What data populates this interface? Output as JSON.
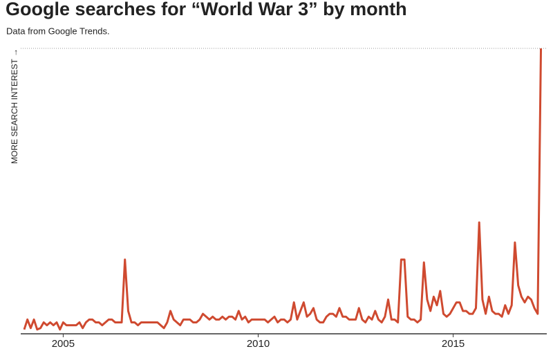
{
  "chart_data": {
    "type": "line",
    "title": "Google searches for “World War 3” by month",
    "subtitle": "Data from Google Trends.",
    "y_label": "MORE SEARCH INTEREST →",
    "x": [
      2004,
      2004.083,
      2004.167,
      2004.25,
      2004.333,
      2004.417,
      2004.5,
      2004.583,
      2004.667,
      2004.75,
      2004.833,
      2004.917,
      2005,
      2005.083,
      2005.167,
      2005.25,
      2005.333,
      2005.417,
      2005.5,
      2005.583,
      2005.667,
      2005.75,
      2005.833,
      2005.917,
      2006,
      2006.083,
      2006.167,
      2006.25,
      2006.333,
      2006.417,
      2006.5,
      2006.583,
      2006.667,
      2006.75,
      2006.833,
      2006.917,
      2007,
      2007.083,
      2007.167,
      2007.25,
      2007.333,
      2007.417,
      2007.5,
      2007.583,
      2007.667,
      2007.75,
      2007.833,
      2007.917,
      2008,
      2008.083,
      2008.167,
      2008.25,
      2008.333,
      2008.417,
      2008.5,
      2008.583,
      2008.667,
      2008.75,
      2008.833,
      2008.917,
      2009,
      2009.083,
      2009.167,
      2009.25,
      2009.333,
      2009.417,
      2009.5,
      2009.583,
      2009.667,
      2009.75,
      2009.833,
      2009.917,
      2010,
      2010.083,
      2010.167,
      2010.25,
      2010.333,
      2010.417,
      2010.5,
      2010.583,
      2010.667,
      2010.75,
      2010.833,
      2010.917,
      2011,
      2011.083,
      2011.167,
      2011.25,
      2011.333,
      2011.417,
      2011.5,
      2011.583,
      2011.667,
      2011.75,
      2011.833,
      2011.917,
      2012,
      2012.083,
      2012.167,
      2012.25,
      2012.333,
      2012.417,
      2012.5,
      2012.583,
      2012.667,
      2012.75,
      2012.833,
      2012.917,
      2013,
      2013.083,
      2013.167,
      2013.25,
      2013.333,
      2013.417,
      2013.5,
      2013.583,
      2013.667,
      2013.75,
      2013.833,
      2013.917,
      2014,
      2014.083,
      2014.167,
      2014.25,
      2014.333,
      2014.417,
      2014.5,
      2014.583,
      2014.667,
      2014.75,
      2014.833,
      2014.917,
      2015,
      2015.083,
      2015.167,
      2015.25,
      2015.333,
      2015.417,
      2015.5,
      2015.583,
      2015.667,
      2015.75,
      2015.833,
      2015.917,
      2016,
      2016.083,
      2016.167,
      2016.25,
      2016.333,
      2016.417,
      2016.5,
      2016.583,
      2016.667,
      2016.75,
      2016.833,
      2016.917,
      2017,
      2017.083,
      2017.167,
      2017.25
    ],
    "series": [
      {
        "color": "#cf4a30",
        "values": [
          1.5,
          5,
          2,
          5,
          1.5,
          2,
          4,
          3,
          4,
          3,
          4,
          1.5,
          4,
          3,
          3,
          3,
          3,
          4,
          2,
          4,
          5,
          5,
          4,
          4,
          3,
          4,
          5,
          5,
          4,
          4,
          4,
          26,
          8,
          4,
          4,
          3,
          4,
          4,
          4,
          4,
          4,
          4,
          3,
          2,
          4,
          8,
          5,
          4,
          3,
          5,
          5,
          5,
          4,
          4,
          5,
          7,
          6,
          5,
          6,
          5,
          5,
          6,
          5,
          6,
          6,
          5,
          8,
          5,
          6,
          4,
          5,
          5,
          5,
          5,
          5,
          4,
          5,
          6,
          4,
          5,
          5,
          4,
          5,
          11,
          5,
          8,
          11,
          6,
          7,
          9,
          5,
          4,
          4,
          6,
          7,
          7,
          6,
          9,
          6,
          6,
          5,
          5,
          5,
          9,
          5,
          4,
          6,
          5,
          8,
          5,
          4,
          6,
          12,
          5,
          5,
          4,
          26,
          26,
          6,
          5,
          5,
          4,
          5,
          25,
          12,
          8,
          13,
          10,
          15,
          7,
          6,
          7,
          9,
          11,
          11,
          8,
          8,
          7,
          7,
          9,
          39,
          12,
          7,
          13,
          8,
          7,
          7,
          6,
          10,
          7,
          10,
          32,
          17,
          13,
          11,
          13,
          12,
          9,
          7,
          100
        ]
      }
    ],
    "xlim": [
      2004,
      2017.4
    ],
    "xticks": [
      2005,
      2010,
      2015
    ],
    "ylim": [
      0,
      100
    ]
  }
}
